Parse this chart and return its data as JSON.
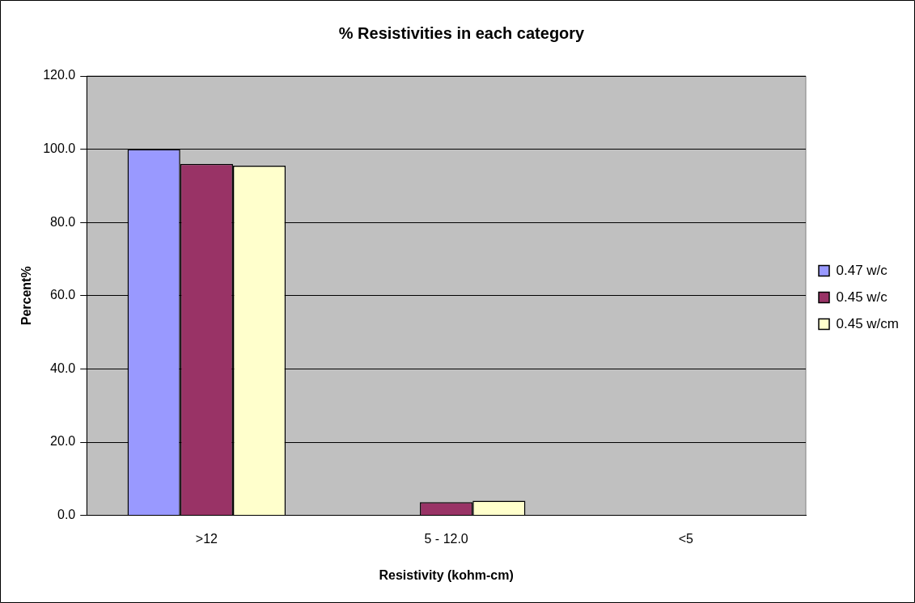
{
  "chart_data": {
    "type": "bar",
    "title": "% Resistivities in each category",
    "xlabel": "Resistivity (kohm-cm)",
    "ylabel": "Percent%",
    "categories": [
      ">12",
      "5 - 12.0",
      "<5"
    ],
    "series": [
      {
        "name": "0.47 w/c",
        "color": "#9999ff",
        "values": [
          100.0,
          0,
          0
        ]
      },
      {
        "name": "0.45 w/c",
        "color": "#993366",
        "values": [
          96.0,
          3.6,
          0
        ]
      },
      {
        "name": "0.45 w/cm",
        "color": "#ffffcc",
        "values": [
          95.5,
          4.0,
          0
        ]
      }
    ],
    "ylim": [
      0,
      120
    ],
    "yticks": [
      {
        "value": 0,
        "label": "0.0"
      },
      {
        "value": 20,
        "label": "20.0"
      },
      {
        "value": 40,
        "label": "40.0"
      },
      {
        "value": 60,
        "label": "60.0"
      },
      {
        "value": 80,
        "label": "80.0"
      },
      {
        "value": 100,
        "label": "100.0"
      },
      {
        "value": 120,
        "label": "120.0"
      }
    ],
    "grid": "y",
    "legend": "right"
  }
}
